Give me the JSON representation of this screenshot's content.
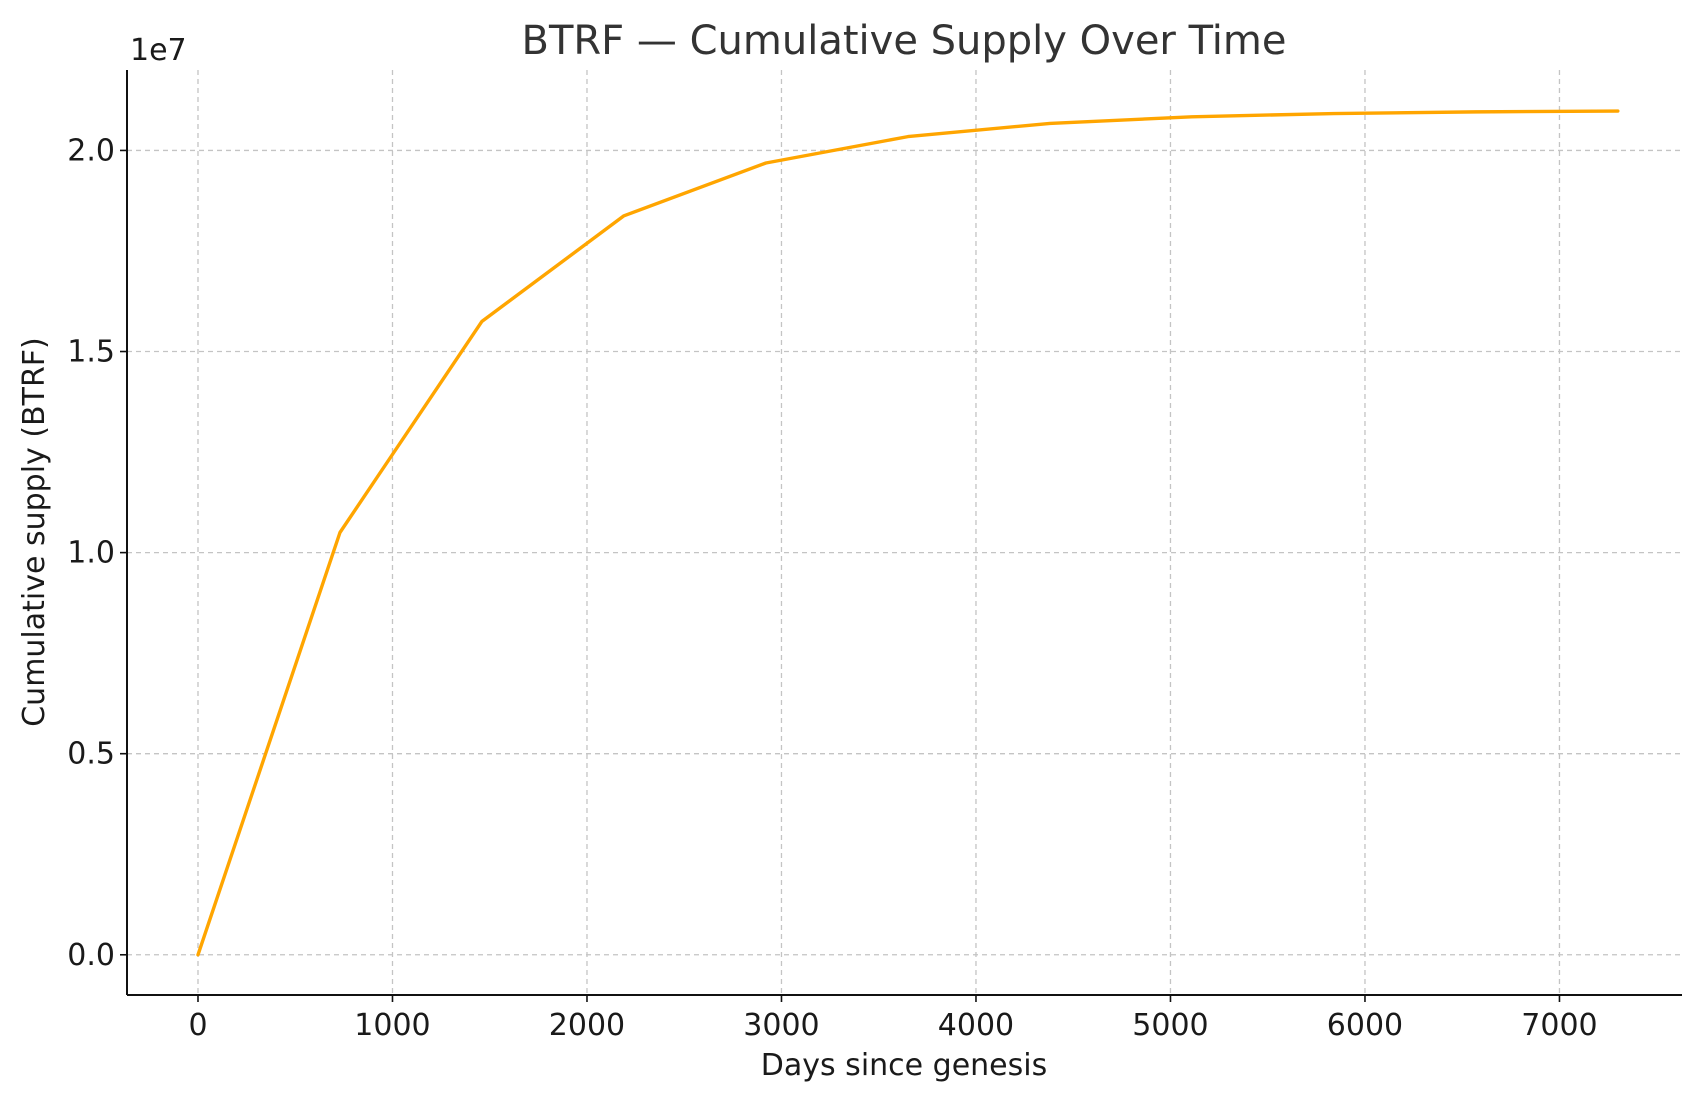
{
  "chart_data": {
    "type": "line",
    "title": "BTRF — Cumulative Supply Over Time",
    "xlabel": "Days since genesis",
    "ylabel": "Cumulative supply (BTRF)",
    "y_offset_label": "1e7",
    "xlim": [
      -365,
      7630
    ],
    "ylim": [
      -1000000,
      22000000
    ],
    "x_ticks": [
      0,
      1000,
      2000,
      3000,
      4000,
      5000,
      6000,
      7000
    ],
    "x_tick_labels": [
      "0",
      "1000",
      "2000",
      "3000",
      "4000",
      "5000",
      "6000",
      "7000"
    ],
    "y_ticks": [
      0,
      5000000,
      10000000,
      15000000,
      20000000
    ],
    "y_tick_labels": [
      "0.0",
      "0.5",
      "1.0",
      "1.5",
      "2.0"
    ],
    "grid": true,
    "series": [
      {
        "color": "#FFA500",
        "x": [
          0,
          730,
          1460,
          2190,
          2920,
          3650,
          4380,
          5110,
          5840,
          6570,
          7300
        ],
        "y": [
          0,
          10500000,
          15750000,
          18375000,
          19687500,
          20343750,
          20671875,
          20835938,
          20917969,
          20958984,
          20979492
        ]
      }
    ]
  }
}
